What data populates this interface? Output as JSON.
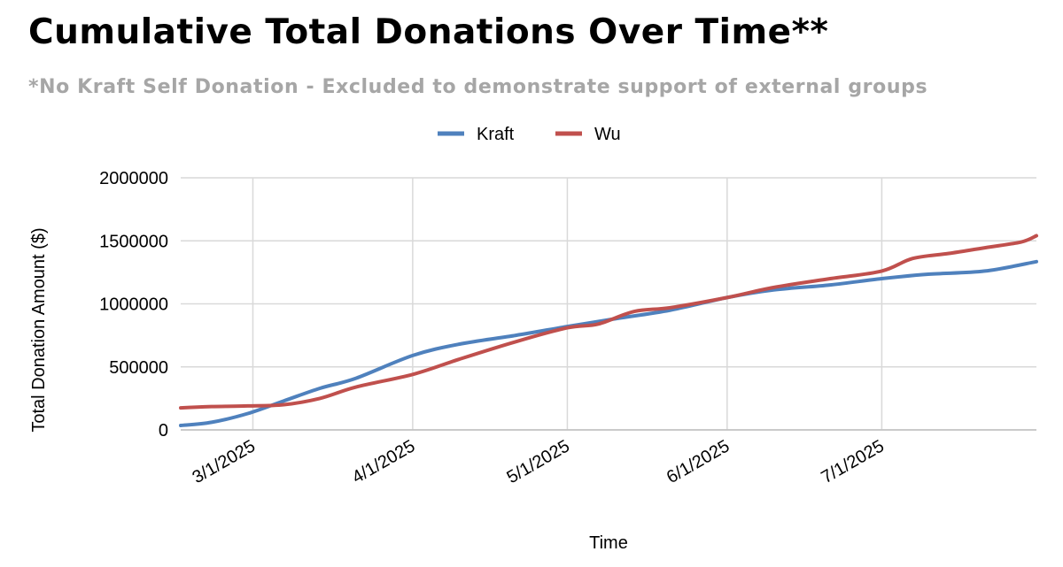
{
  "chart_data": {
    "type": "line",
    "title": "Cumulative Total Donations Over Time**",
    "subtitle": "*No Kraft Self Donation - Excluded to demonstrate support of external groups",
    "xlabel": "Time",
    "ylabel": "Total Donation Amount ($)",
    "ylim": [
      0,
      2000000
    ],
    "y_ticks": [
      "0",
      "500000",
      "1000000",
      "1500000",
      "2000000"
    ],
    "x_range": [
      "2/15/2025",
      "7/31/2025"
    ],
    "x_ticks": [
      "3/1/2025",
      "4/1/2025",
      "5/1/2025",
      "6/1/2025",
      "7/1/2025"
    ],
    "grid": true,
    "legend_position": "top-center",
    "series": [
      {
        "name": "Kraft",
        "color": "#4f81bd",
        "points": [
          [
            "2/15/2025",
            35000
          ],
          [
            "2/21/2025",
            60000
          ],
          [
            "2/28/2025",
            130000
          ],
          [
            "3/7/2025",
            230000
          ],
          [
            "3/14/2025",
            330000
          ],
          [
            "3/21/2025",
            410000
          ],
          [
            "4/1/2025",
            590000
          ],
          [
            "4/10/2025",
            680000
          ],
          [
            "4/21/2025",
            750000
          ],
          [
            "5/1/2025",
            820000
          ],
          [
            "5/10/2025",
            880000
          ],
          [
            "5/21/2025",
            950000
          ],
          [
            "6/1/2025",
            1050000
          ],
          [
            "6/10/2025",
            1110000
          ],
          [
            "6/21/2025",
            1150000
          ],
          [
            "7/1/2025",
            1200000
          ],
          [
            "7/10/2025",
            1235000
          ],
          [
            "7/21/2025",
            1260000
          ],
          [
            "7/31/2025",
            1335000
          ]
        ]
      },
      {
        "name": "Wu",
        "color": "#c0504d",
        "points": [
          [
            "2/15/2025",
            175000
          ],
          [
            "2/21/2025",
            185000
          ],
          [
            "2/28/2025",
            190000
          ],
          [
            "3/7/2025",
            200000
          ],
          [
            "3/14/2025",
            250000
          ],
          [
            "3/21/2025",
            340000
          ],
          [
            "4/1/2025",
            440000
          ],
          [
            "4/10/2025",
            560000
          ],
          [
            "4/21/2025",
            700000
          ],
          [
            "5/1/2025",
            810000
          ],
          [
            "5/7/2025",
            840000
          ],
          [
            "5/14/2025",
            940000
          ],
          [
            "5/21/2025",
            970000
          ],
          [
            "6/1/2025",
            1050000
          ],
          [
            "6/10/2025",
            1130000
          ],
          [
            "6/21/2025",
            1200000
          ],
          [
            "7/1/2025",
            1260000
          ],
          [
            "7/7/2025",
            1360000
          ],
          [
            "7/14/2025",
            1400000
          ],
          [
            "7/21/2025",
            1445000
          ],
          [
            "7/28/2025",
            1490000
          ],
          [
            "7/31/2025",
            1540000
          ]
        ]
      }
    ]
  }
}
